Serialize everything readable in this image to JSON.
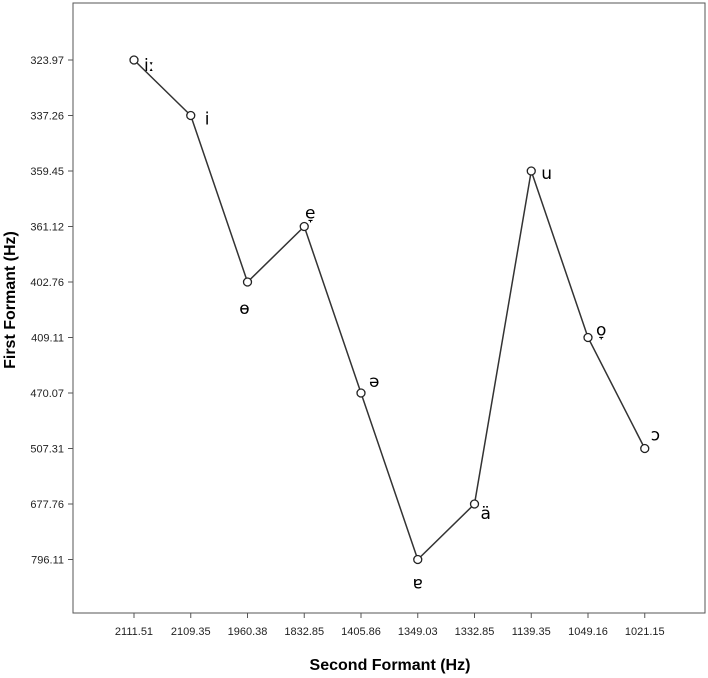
{
  "chart_data": {
    "type": "line",
    "xlabel": "Second Formant (Hz)",
    "ylabel": "First Formant (Hz)",
    "categories": [
      "2111.51",
      "2109.35",
      "1960.38",
      "1832.85",
      "1405.86",
      "1349.03",
      "1332.85",
      "1139.35",
      "1049.16",
      "1021.15"
    ],
    "y_categories": [
      "323.97",
      "337.26",
      "359.45",
      "361.12",
      "402.76",
      "409.11",
      "470.07",
      "507.31",
      "677.76",
      "796.11"
    ],
    "points": [
      {
        "x": "2111.51",
        "y": "323.97",
        "label": "iː"
      },
      {
        "x": "2109.35",
        "y": "337.26",
        "label": "i"
      },
      {
        "x": "1960.38",
        "y": "402.76",
        "label": "ɵ"
      },
      {
        "x": "1832.85",
        "y": "361.12",
        "label": "e̞"
      },
      {
        "x": "1405.86",
        "y": "470.07",
        "label": "ə"
      },
      {
        "x": "1349.03",
        "y": "796.11",
        "label": "ɐ"
      },
      {
        "x": "1332.85",
        "y": "677.76",
        "label": "ä"
      },
      {
        "x": "1139.35",
        "y": "359.45",
        "label": "u"
      },
      {
        "x": "1049.16",
        "y": "409.11",
        "label": "o̞"
      },
      {
        "x": "1021.15",
        "y": "507.31",
        "label": "ɔ"
      }
    ],
    "y_axis_inverted": true,
    "grid": false,
    "legend": "none",
    "line_color": "#333333",
    "marker": "open-circle"
  }
}
